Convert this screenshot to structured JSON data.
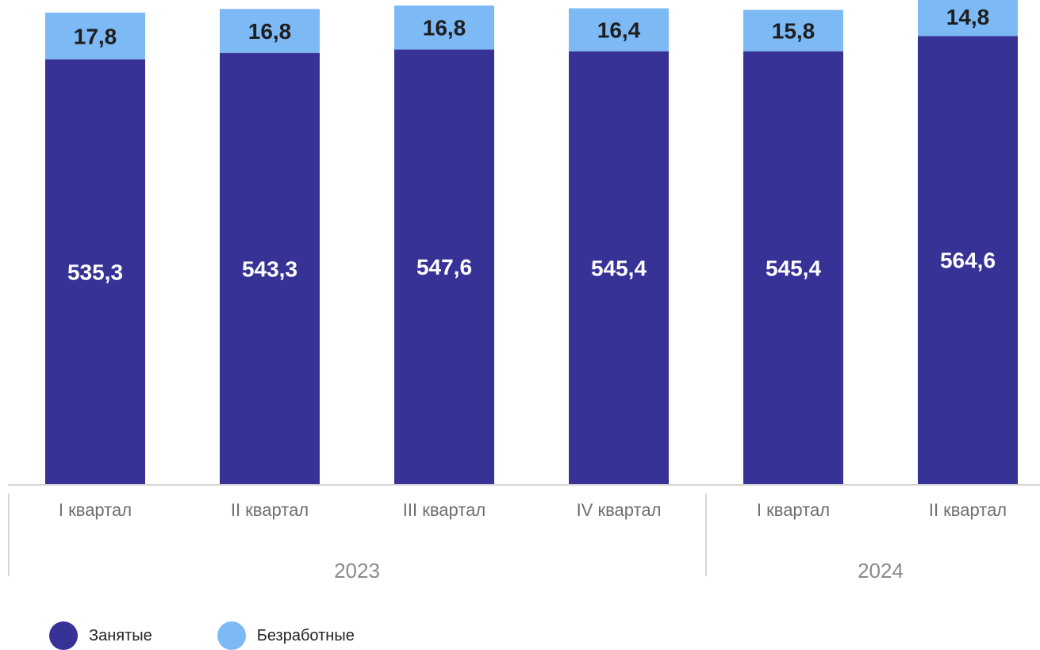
{
  "chart_data": {
    "type": "bar",
    "stacked": true,
    "categories": [
      "I квартал",
      "II квартал",
      "III квартал",
      "IV квартал",
      "I квартал",
      "II квартал"
    ],
    "groups": [
      {
        "label": "2023",
        "count": 4
      },
      {
        "label": "2024",
        "count": 2
      }
    ],
    "series": [
      {
        "name": "Занятые",
        "values": [
          535.3,
          543.3,
          547.6,
          545.4,
          545.4,
          564.6
        ],
        "labels": [
          "535,3",
          "543,3",
          "547,6",
          "545,4",
          "545,4",
          "564,6"
        ],
        "color": "#363296",
        "label_color": "#ffffff"
      },
      {
        "name": "Безработные",
        "values": [
          17.8,
          16.8,
          16.8,
          16.4,
          15.8,
          14.8
        ],
        "labels": [
          "17,8",
          "16,8",
          "16,8",
          "16,4",
          "15,8",
          "14,8"
        ],
        "color": "#7db9f5",
        "label_color": "#1e1e1e"
      }
    ],
    "ylim": [
      0,
      580
    ],
    "grid": false,
    "legend_position": "bottom-left"
  }
}
